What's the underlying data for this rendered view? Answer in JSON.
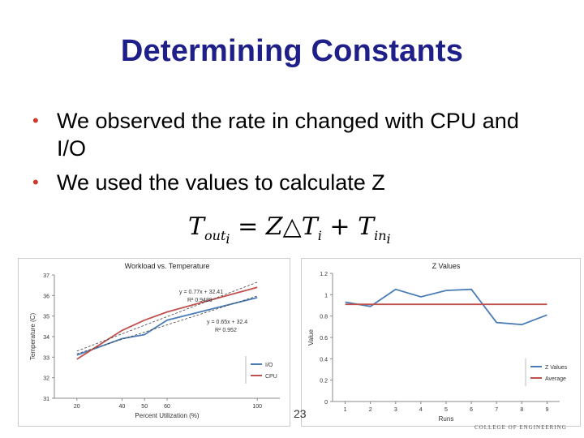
{
  "slide": {
    "title": "Determining Constants",
    "bullets": [
      "We observed the rate in changed with CPU and I/O",
      "We used the values to calculate Z"
    ],
    "bullet_color": "#d03a2c",
    "title_color": "#1f1f8a",
    "page_number": "23",
    "footer_text": "COLLEGE OF ENGINEERING"
  },
  "formula": {
    "T": "T",
    "out": "out",
    "i": "i",
    "eq": "=",
    "Z": "Z",
    "delta": "△",
    "plus": "+",
    "in": "in"
  },
  "chart_data": [
    {
      "type": "line",
      "title": "Workload vs. Temperature",
      "xlabel": "Percent Utilization (%)",
      "ylabel": "Temperature (C)",
      "x": [
        20,
        40,
        50,
        60,
        100
      ],
      "xticks": [
        "20",
        "40",
        "50",
        "60",
        "100"
      ],
      "ylim": [
        31,
        37
      ],
      "yticks": [
        "31",
        "32",
        "33",
        "34",
        "35",
        "36",
        "37"
      ],
      "series": [
        {
          "name": "I/O",
          "color": "#4a7db8",
          "values": [
            33.1,
            33.9,
            34.1,
            34.8,
            35.9
          ]
        },
        {
          "name": "CPU",
          "color": "#c0504d",
          "values": [
            32.9,
            34.3,
            34.8,
            35.2,
            36.4
          ]
        }
      ],
      "trendlines": [
        {
          "equation": "y = 0.77x + 32.41",
          "r2_label": "R²  0.9489",
          "color": "#333333"
        },
        {
          "equation": "y = 0.65x + 32.4",
          "r2_label": "R²  0.952",
          "color": "#333333"
        }
      ],
      "legend": "bottom-right"
    },
    {
      "type": "line",
      "title": "Z Values",
      "xlabel": "Runs",
      "ylabel": "Value",
      "x": [
        1,
        2,
        3,
        4,
        5,
        6,
        7,
        8,
        9
      ],
      "xticks": [
        "1",
        "2",
        "3",
        "4",
        "5",
        "6",
        "7",
        "8",
        "9"
      ],
      "ylim": [
        0,
        1.2
      ],
      "yticks": [
        "0",
        "0.2",
        "0.4",
        "0.6",
        "0.8",
        "1",
        "1.2"
      ],
      "series": [
        {
          "name": "Z Values",
          "color": "#4a7db8",
          "values": [
            0.93,
            0.89,
            1.05,
            0.98,
            1.04,
            1.05,
            0.74,
            0.72,
            0.81
          ]
        },
        {
          "name": "Average",
          "color": "#c0504d",
          "values": [
            0.91,
            0.91,
            0.91,
            0.91,
            0.91,
            0.91,
            0.91,
            0.91,
            0.91
          ]
        }
      ],
      "legend": "bottom-right"
    }
  ]
}
